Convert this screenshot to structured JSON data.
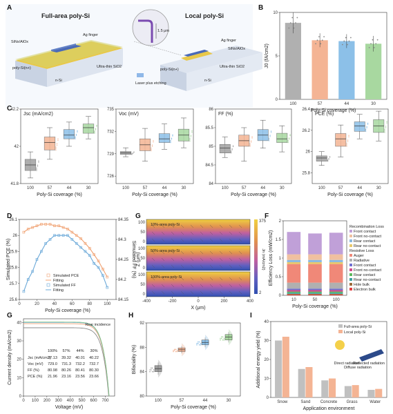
{
  "panel_labels": [
    "A",
    "B",
    "C",
    "D",
    "E",
    "F",
    "G",
    "H",
    "I"
  ],
  "panel_a": {
    "left_title": "Full-area poly-Si",
    "right_title": "Local poly-Si",
    "labels_left": [
      "SiNx/AlOx",
      "Ag finger",
      "poly-Si(n+)",
      "Ultra-thin SiO2",
      "n-Si"
    ],
    "labels_right": [
      "Ag finger",
      "SiNx/AlOx",
      "poly-Si(n+)",
      "Ultra-thin SiO2",
      "n-Si"
    ],
    "inset_text": "1.5 μm",
    "legend": "Laser plus etching"
  },
  "chart_data": [
    {
      "panel": "B",
      "type": "bar",
      "ylabel": "J0 (fA/cm2)",
      "xlabel": "Poly-Si coverage (%)",
      "categories": [
        "100",
        "57",
        "44",
        "30"
      ],
      "values": [
        8.8,
        6.8,
        6.7,
        6.4
      ],
      "errors": [
        1.2,
        0.8,
        0.8,
        0.9
      ],
      "ylim": [
        0,
        10
      ],
      "yticks": [
        0,
        5,
        10
      ],
      "colors": [
        "#b0b0b0",
        "#f4b494",
        "#8cc0e8",
        "#a8d8a0"
      ]
    },
    {
      "panel": "C",
      "type": "box",
      "name": "Jsc",
      "label": "Jsc (mA/cm2)",
      "xlabel": "Poly-Si coverage (%)",
      "categories": [
        "100",
        "57",
        "44",
        "30"
      ],
      "ylim": [
        41.8,
        42.2
      ],
      "yticks": [
        41.8,
        42.0,
        42.2
      ],
      "boxes": [
        {
          "min": 41.83,
          "q1": 41.87,
          "median": 41.9,
          "q3": 41.93,
          "max": 41.97
        },
        {
          "min": 41.93,
          "q1": 41.98,
          "median": 42.02,
          "q3": 42.05,
          "max": 42.1
        },
        {
          "min": 42.0,
          "q1": 42.04,
          "median": 42.06,
          "q3": 42.09,
          "max": 42.13
        },
        {
          "min": 42.04,
          "q1": 42.07,
          "median": 42.1,
          "q3": 42.12,
          "max": 42.16
        }
      ]
    },
    {
      "panel": "C",
      "type": "box",
      "name": "Voc",
      "label": "Voc (mV)",
      "xlabel": "Poly-Si coverage (%)",
      "categories": [
        "100",
        "57",
        "44",
        "30"
      ],
      "ylim": [
        725,
        735
      ],
      "yticks": [
        726,
        729,
        732,
        735
      ],
      "boxes": [
        {
          "min": 728.6,
          "q1": 728.9,
          "median": 729.1,
          "q3": 729.3,
          "max": 729.8
        },
        {
          "min": 728.0,
          "q1": 729.4,
          "median": 730.2,
          "q3": 731.0,
          "max": 732.4
        },
        {
          "min": 729.6,
          "q1": 730.5,
          "median": 731.0,
          "q3": 731.7,
          "max": 733.0
        },
        {
          "min": 729.8,
          "q1": 730.7,
          "median": 731.5,
          "q3": 732.3,
          "max": 733.8
        }
      ]
    },
    {
      "panel": "C",
      "type": "box",
      "name": "FF",
      "label": "FF (%)",
      "xlabel": "Poly-Si coverage (%)",
      "categories": [
        "100",
        "57",
        "44",
        "30"
      ],
      "ylim": [
        84.0,
        86.0
      ],
      "yticks": [
        84.0,
        84.5,
        85.0,
        85.5,
        86.0
      ],
      "boxes": [
        {
          "min": 84.7,
          "q1": 84.82,
          "median": 84.95,
          "q3": 85.05,
          "max": 85.25
        },
        {
          "min": 84.6,
          "q1": 85.0,
          "median": 85.15,
          "q3": 85.3,
          "max": 85.5
        },
        {
          "min": 84.95,
          "q1": 85.15,
          "median": 85.3,
          "q3": 85.45,
          "max": 85.7
        },
        {
          "min": 84.85,
          "q1": 85.1,
          "median": 85.2,
          "q3": 85.35,
          "max": 85.55
        }
      ]
    },
    {
      "panel": "C",
      "type": "box",
      "name": "PCE",
      "label": "PCE (%)",
      "xlabel": "Poly-Si coverage (%)",
      "categories": [
        "100",
        "57",
        "44",
        "30"
      ],
      "ylim": [
        25.7,
        26.4
      ],
      "yticks": [
        25.8,
        26.0,
        26.2,
        26.4
      ],
      "boxes": [
        {
          "min": 25.87,
          "q1": 25.91,
          "median": 25.94,
          "q3": 25.96,
          "max": 26.0
        },
        {
          "min": 25.95,
          "q1": 26.05,
          "median": 26.12,
          "q3": 26.17,
          "max": 26.25
        },
        {
          "min": 26.12,
          "q1": 26.19,
          "median": 26.24,
          "q3": 26.28,
          "max": 26.35
        },
        {
          "min": 26.1,
          "q1": 26.18,
          "median": 26.24,
          "q3": 26.3,
          "max": 26.38
        }
      ]
    },
    {
      "panel": "D",
      "type": "scatter+line",
      "xlabel": "Poly-Si coverage (%)",
      "ylabel": "Simulated PCE (%)",
      "y2label": "Simulated FF (%)",
      "xlim": [
        0,
        110
      ],
      "xticks": [
        0,
        20,
        40,
        60,
        80,
        100
      ],
      "ylim": [
        25.6,
        26.1
      ],
      "yticks": [
        25.6,
        25.7,
        25.8,
        25.9,
        26.0,
        26.1
      ],
      "y2lim": [
        84.15,
        84.35
      ],
      "y2ticks": [
        84.15,
        84.2,
        84.25,
        84.3,
        84.35
      ],
      "legend": [
        "Simulated PCE",
        "Fitting",
        "Simulated FF",
        "Fitting"
      ],
      "series": [
        {
          "name": "Simulated PCE",
          "axis": "left",
          "color": "#f0a070",
          "x": [
            5,
            10,
            15,
            20,
            25,
            30,
            35,
            40,
            45,
            50,
            55,
            60,
            65,
            70,
            75,
            80,
            85,
            90,
            95,
            100
          ],
          "y": [
            26.02,
            26.04,
            26.05,
            26.06,
            26.07,
            26.07,
            26.07,
            26.06,
            26.06,
            26.05,
            26.04,
            26.02,
            26.0,
            25.98,
            25.95,
            25.92,
            25.88,
            25.84,
            25.79,
            25.74
          ]
        },
        {
          "name": "Simulated FF",
          "axis": "right",
          "color": "#6aa8d8",
          "x": [
            5,
            10,
            15,
            20,
            25,
            30,
            35,
            40,
            45,
            50,
            55,
            60,
            65,
            70,
            75,
            80,
            85,
            90,
            95,
            100
          ],
          "y": [
            84.17,
            84.2,
            84.22,
            84.25,
            84.27,
            84.29,
            84.3,
            84.31,
            84.31,
            84.31,
            84.31,
            84.3,
            84.29,
            84.28,
            84.27,
            84.26,
            84.24,
            84.23,
            84.21,
            84.18
          ]
        }
      ]
    },
    {
      "panel": "E",
      "type": "heatmap",
      "xlabel": "X (μm)",
      "ylabel": "Z (μm)",
      "xticks": [
        -400,
        -200,
        0,
        200,
        400
      ],
      "sections": [
        "10%-area poly-Si",
        "50%-area poly-Si",
        "100%-area poly-Si"
      ],
      "zticks": [
        100,
        50,
        0
      ],
      "colorbar_label": "Jn (mA/cm2)",
      "colorbar_range": [
        2,
        375
      ]
    },
    {
      "panel": "F",
      "type": "stacked-bar",
      "ylabel": "Efficiency Loss (mW/cm2)",
      "xlabel": "Poly-Si coverage (%)",
      "categories": [
        "10",
        "50",
        "100"
      ],
      "ylim": [
        0,
        2.0
      ],
      "yticks": [
        0.0,
        0.5,
        1.0,
        1.5,
        2.0
      ],
      "legend_groups": [
        "Recombination Loss",
        "Resistive Loss"
      ],
      "series": [
        {
          "name": "Electron bulk",
          "color": "#e04040",
          "values": [
            0.02,
            0.02,
            0.02
          ]
        },
        {
          "name": "Hole bulk",
          "color": "#9a6a3a",
          "values": [
            0.02,
            0.02,
            0.02
          ]
        },
        {
          "name": "Rear no-contact",
          "color": "#3aa0a0",
          "values": [
            0.03,
            0.03,
            0.03
          ]
        },
        {
          "name": "Rear contact",
          "color": "#5cb85c",
          "values": [
            0.03,
            0.03,
            0.03
          ]
        },
        {
          "name": "Front no-contact",
          "color": "#d04a8a",
          "values": [
            0.04,
            0.04,
            0.04
          ]
        },
        {
          "name": "Front contact",
          "color": "#7070d0",
          "values": [
            0.04,
            0.04,
            0.04
          ]
        },
        {
          "name": "Radiative",
          "color": "#b0b0b0",
          "values": [
            0.16,
            0.16,
            0.16
          ]
        },
        {
          "name": "Auger",
          "color": "#f08878",
          "values": [
            0.5,
            0.5,
            0.5
          ]
        },
        {
          "name": "Rear no-contact",
          "color": "#e8c86a",
          "values": [
            0.05,
            0.05,
            0.05
          ]
        },
        {
          "name": "Rear contact",
          "color": "#8ab8e0",
          "values": [
            0.06,
            0.06,
            0.06
          ]
        },
        {
          "name": "Front no-contact",
          "color": "#f0c0a0",
          "values": [
            0.15,
            0.15,
            0.15
          ]
        },
        {
          "name": "Front contact",
          "color": "#c0a0d8",
          "values": [
            0.6,
            0.56,
            0.58
          ]
        }
      ]
    },
    {
      "panel": "G",
      "type": "line",
      "xlabel": "Voltage (mV)",
      "ylabel": "Current density (mA/cm2)",
      "xlim": [
        0,
        780
      ],
      "xticks": [
        0,
        100,
        200,
        300,
        400,
        500,
        600,
        700
      ],
      "ylim": [
        0,
        42
      ],
      "yticks": [
        0,
        10,
        20,
        30,
        40
      ],
      "annotation": "Rear incidence",
      "table": {
        "headers": [
          "",
          "100%",
          "57%",
          "44%",
          "30%"
        ],
        "rows": [
          [
            "Jsc (mA/cm2)",
            "37.13",
            "39.32",
            "40.01",
            "40.22"
          ],
          [
            "Voc (mV)",
            "729.0",
            "731.3",
            "732.2",
            "732.7"
          ],
          [
            "FF (%)",
            "80.98",
            "80.26",
            "80.41",
            "80.30"
          ],
          [
            "PCE (%)",
            "21.96",
            "23.16",
            "23.56",
            "23.66"
          ]
        ]
      },
      "series": [
        {
          "name": "100%",
          "color": "#888888",
          "jsc": 37.13,
          "voc": 729.0
        },
        {
          "name": "57%",
          "color": "#f0a070",
          "jsc": 39.32,
          "voc": 731.3
        },
        {
          "name": "44%",
          "color": "#6aa8d8",
          "jsc": 40.01,
          "voc": 732.2
        },
        {
          "name": "30%",
          "color": "#8cc88a",
          "jsc": 40.22,
          "voc": 732.7
        }
      ]
    },
    {
      "panel": "H",
      "type": "box",
      "ylabel": "Bifaciality (%)",
      "xlabel": "Poly-Si coverage (%)",
      "categories": [
        "100",
        "57",
        "44",
        "30"
      ],
      "ylim": [
        80,
        92
      ],
      "yticks": [
        80,
        84,
        88,
        92
      ],
      "boxes": [
        {
          "min": 83.5,
          "q1": 84.0,
          "median": 84.5,
          "q3": 85.0,
          "max": 85.5
        },
        {
          "min": 87.0,
          "q1": 87.3,
          "median": 87.6,
          "q3": 87.9,
          "max": 88.2
        },
        {
          "min": 88.0,
          "q1": 88.4,
          "median": 88.8,
          "q3": 89.2,
          "max": 89.6
        },
        {
          "min": 88.8,
          "q1": 89.2,
          "median": 89.7,
          "q3": 90.1,
          "max": 90.5
        }
      ]
    },
    {
      "panel": "I",
      "type": "bar",
      "ylabel": "Additional energy yield (%)",
      "xlabel": "Application environment",
      "categories": [
        "Snow",
        "Sand",
        "Concrete",
        "Grass",
        "Water"
      ],
      "ylim": [
        0,
        40
      ],
      "yticks": [
        0,
        10,
        20,
        30,
        40
      ],
      "series": [
        {
          "name": "Full-area poly-Si",
          "color": "#c0c0c0",
          "values": [
            30,
            15,
            9,
            6,
            4
          ]
        },
        {
          "name": "Local poly-Si",
          "color": "#f4b494",
          "values": [
            32,
            16,
            10,
            6.5,
            4.5
          ]
        }
      ],
      "inset_labels": [
        "Direct radiation",
        "Diffuse radiation",
        "Reflected radiation"
      ]
    }
  ]
}
